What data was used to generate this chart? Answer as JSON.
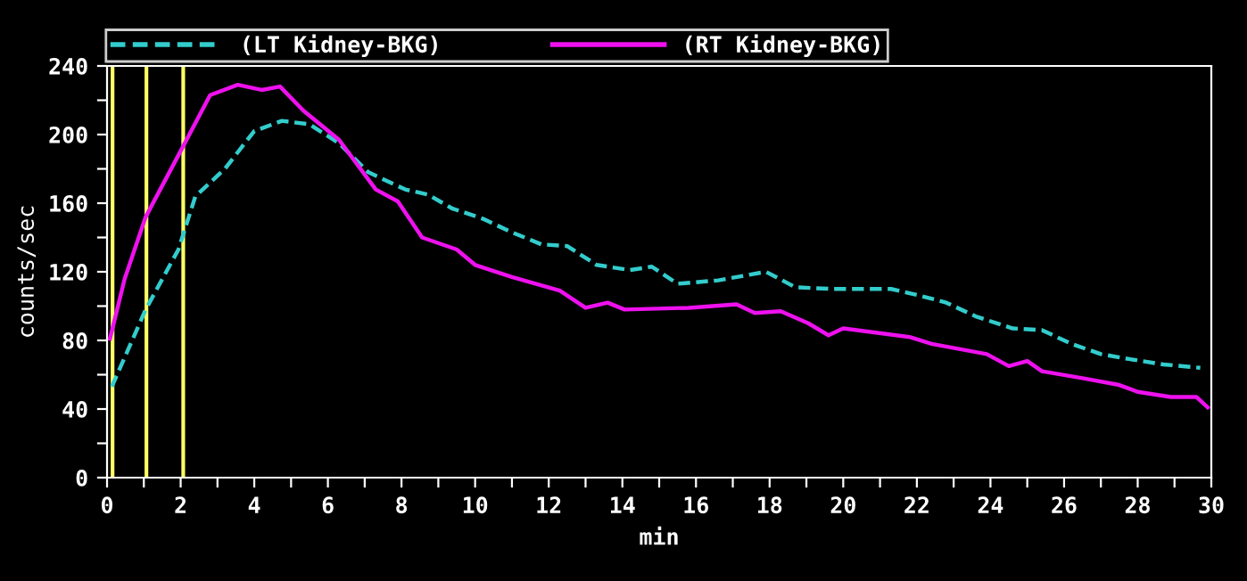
{
  "chart_data": {
    "type": "line",
    "xlabel": "min",
    "ylabel": "counts/sec",
    "xlim": [
      0,
      30
    ],
    "ylim": [
      0,
      240
    ],
    "xticks": [
      0,
      {
        "value": 1,
        "label": null
      },
      2,
      {
        "value": 3,
        "label": null
      },
      4,
      {
        "value": 5,
        "label": null
      },
      6,
      {
        "value": 7,
        "label": null
      },
      8,
      {
        "value": 9,
        "label": null
      },
      10,
      {
        "value": 11,
        "label": null
      },
      12,
      {
        "value": 13,
        "label": null
      },
      14,
      {
        "value": 15,
        "label": null
      },
      16,
      {
        "value": 17,
        "label": null
      },
      18,
      {
        "value": 19,
        "label": null
      },
      20,
      {
        "value": 21,
        "label": null
      },
      22,
      {
        "value": 23,
        "label": null
      },
      24,
      {
        "value": 25,
        "label": null
      },
      26,
      {
        "value": 27,
        "label": null
      },
      28,
      {
        "value": 29,
        "label": null
      },
      30
    ],
    "yticks": [
      0,
      {
        "value": 20,
        "label": null
      },
      40,
      {
        "value": 60,
        "label": null
      },
      80,
      {
        "value": 100,
        "label": null
      },
      120,
      {
        "value": 140,
        "label": null
      },
      160,
      {
        "value": 180,
        "label": null
      },
      200,
      {
        "value": 220,
        "label": null
      },
      240
    ],
    "grid": false,
    "legend": "top",
    "marker": "none",
    "series": [
      {
        "name": "(LT Kidney-BKG)",
        "color": "#33cccc",
        "line_style": "dashed",
        "x": [
          0.13,
          1.05,
          1.94,
          2.4,
          3.2,
          4.0,
          4.75,
          5.5,
          6.3,
          7.1,
          8.1,
          8.72,
          9.37,
          10.2,
          11.0,
          11.8,
          12.5,
          13.3,
          14.2,
          14.8,
          15.5,
          16.6,
          17.9,
          18.7,
          19.7,
          20.5,
          21.3,
          22.1,
          22.8,
          23.6,
          24.6,
          25.4,
          26.2,
          27.0,
          27.8,
          28.7,
          29.7
        ],
        "values": [
          53,
          98,
          133,
          164,
          180,
          202,
          208,
          206,
          195,
          178,
          168,
          165,
          157,
          151,
          143,
          136,
          135,
          124,
          121,
          123,
          113,
          115,
          120,
          111,
          110,
          110,
          110,
          106,
          102,
          94,
          87,
          86,
          78,
          72,
          69,
          66,
          64
        ]
      },
      {
        "name": "(RT Kidney-BKG)",
        "color": "#ee11ee",
        "line_style": "solid",
        "x": [
          0.08,
          0.48,
          1.05,
          1.94,
          2.8,
          3.55,
          4.2,
          4.7,
          5.33,
          6.3,
          7.3,
          7.9,
          8.56,
          9.5,
          10.0,
          11.0,
          12.3,
          13.0,
          13.6,
          14.06,
          15.8,
          17.1,
          17.6,
          18.3,
          19.05,
          19.6,
          20.0,
          21.8,
          22.4,
          23.9,
          24.5,
          25.0,
          25.4,
          26.5,
          27.5,
          28.0,
          28.9,
          29.6,
          29.9
        ],
        "values": [
          81,
          116,
          152,
          188,
          223,
          229,
          226,
          228,
          214,
          197,
          168,
          161,
          140,
          133,
          124,
          117,
          109,
          99,
          102,
          98,
          99,
          101,
          96,
          97,
          90,
          83,
          87,
          82,
          78,
          72,
          65,
          68,
          62,
          58,
          54,
          50,
          47,
          47,
          41
        ]
      }
    ],
    "ref_lines": [
      {
        "axis": "x",
        "value": 0.15,
        "color": "#ffff66"
      },
      {
        "axis": "x",
        "value": 1.07,
        "color": "#ffff66"
      },
      {
        "axis": "x",
        "value": 2.07,
        "color": "#ffff66"
      }
    ]
  }
}
